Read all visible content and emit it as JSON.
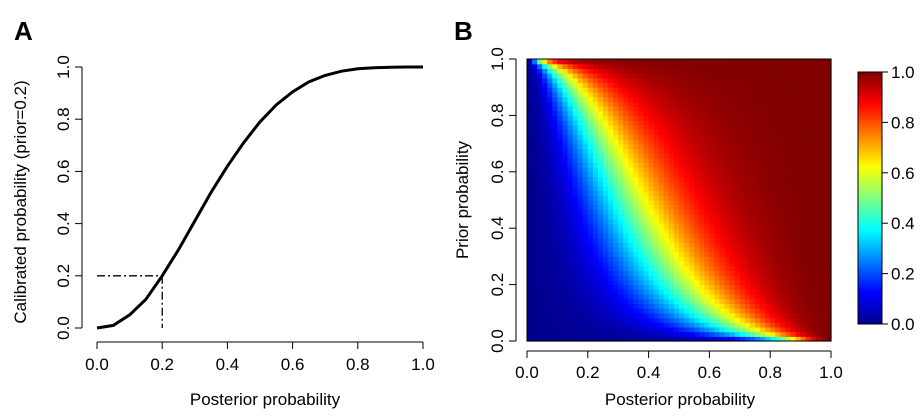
{
  "chart_data": [
    {
      "panel": "A",
      "type": "line",
      "xlabel": "Posterior probability",
      "ylabel": "Calibrated probability (prior=0.2)",
      "xlim": [
        0,
        1
      ],
      "ylim": [
        0,
        1
      ],
      "x_ticks": [
        "0.0",
        "0.2",
        "0.4",
        "0.6",
        "0.8",
        "1.0"
      ],
      "y_ticks": [
        "0.0",
        "0.2",
        "0.4",
        "0.6",
        "0.8",
        "1.0"
      ],
      "grid": false,
      "series": [
        {
          "x": [
            0.0,
            0.05,
            0.1,
            0.15,
            0.2,
            0.25,
            0.3,
            0.35,
            0.4,
            0.45,
            0.5,
            0.55,
            0.6,
            0.65,
            0.7,
            0.75,
            0.8,
            0.85,
            0.9,
            0.95,
            1.0
          ],
          "y": [
            0.0,
            0.01,
            0.05,
            0.11,
            0.2,
            0.3,
            0.41,
            0.52,
            0.62,
            0.71,
            0.79,
            0.855,
            0.905,
            0.943,
            0.968,
            0.984,
            0.993,
            0.997,
            0.999,
            1.0,
            1.0
          ],
          "color": "#000000"
        }
      ],
      "annotations": [
        {
          "type": "dashdot-guide",
          "x": 0.2,
          "y": 0.2
        }
      ]
    },
    {
      "panel": "B",
      "type": "heatmap",
      "xlabel": "Posterior probability",
      "ylabel": "Prior probability",
      "xlim": [
        0,
        1
      ],
      "ylim": [
        0,
        1
      ],
      "x_ticks": [
        "0.0",
        "0.2",
        "0.4",
        "0.6",
        "0.8",
        "1.0"
      ],
      "y_ticks": [
        "0.0",
        "0.2",
        "0.4",
        "0.6",
        "0.8",
        "1.0"
      ],
      "colorbar": {
        "range": [
          0,
          1
        ],
        "ticks": [
          "0.0",
          "0.2",
          "0.4",
          "0.6",
          "0.8",
          "1.0"
        ],
        "colormap": [
          "#00008f",
          "#0000ff",
          "#00ffff",
          "#ffff00",
          "#ff0000",
          "#800000"
        ]
      },
      "value_function": "calibrated probability as a function of posterior (x) and prior (y)"
    }
  ]
}
